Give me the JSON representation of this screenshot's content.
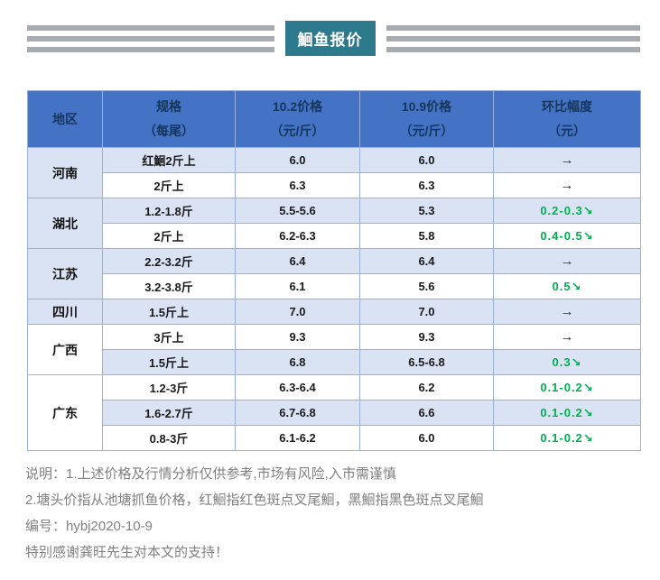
{
  "banner": {
    "title": "鮰鱼报价"
  },
  "colors": {
    "banner_bg": "#2C7A8B",
    "stripe": "#A6AAB1",
    "header_bg": "#4472C4",
    "header_text": "#16365C",
    "row_alt_bg": "#DAE3F3",
    "table_border": "#9AB0DE",
    "down_green": "#00B050",
    "flat_arrow": "#333333",
    "note_text": "#808080"
  },
  "table": {
    "columns": [
      {
        "line1": "地区",
        "line2": ""
      },
      {
        "line1": "规格",
        "line2": "（每尾）"
      },
      {
        "line1": "10.2价格",
        "line2": "（元/斤）"
      },
      {
        "line1": "10.9价格",
        "line2": "（元/斤）"
      },
      {
        "line1": "环比幅度",
        "line2": "（元）"
      }
    ],
    "groups": [
      {
        "region": "河南",
        "region_shade": "blue",
        "rows": [
          {
            "spec": "红鮰2斤上",
            "p102": "6.0",
            "p109": "6.0",
            "change": "→",
            "change_type": "flat",
            "shade": "blue"
          },
          {
            "spec": "2斤上",
            "p102": "6.3",
            "p109": "6.3",
            "change": "→",
            "change_type": "flat",
            "shade": "white"
          }
        ]
      },
      {
        "region": "湖北",
        "region_shade": "blue",
        "rows": [
          {
            "spec": "1.2-1.8斤",
            "p102": "5.5-5.6",
            "p109": "5.3",
            "change": "0.2-0.3↘",
            "change_type": "down",
            "shade": "blue"
          },
          {
            "spec": "2斤上",
            "p102": "6.2-6.3",
            "p109": "5.8",
            "change": "0.4-0.5↘",
            "change_type": "down",
            "shade": "white"
          }
        ]
      },
      {
        "region": "江苏",
        "region_shade": "blue",
        "rows": [
          {
            "spec": "2.2-3.2斤",
            "p102": "6.4",
            "p109": "6.4",
            "change": "→",
            "change_type": "flat",
            "shade": "blue"
          },
          {
            "spec": "3.2-3.8斤",
            "p102": "6.1",
            "p109": "5.6",
            "change": "0.5↘",
            "change_type": "down",
            "shade": "white"
          }
        ]
      },
      {
        "region": "四川",
        "region_shade": "blue",
        "rows": [
          {
            "spec": "1.5斤上",
            "p102": "7.0",
            "p109": "7.0",
            "change": "→",
            "change_type": "flat",
            "shade": "blue"
          }
        ]
      },
      {
        "region": "广西",
        "region_shade": "white",
        "rows": [
          {
            "spec": "3斤上",
            "p102": "9.3",
            "p109": "9.3",
            "change": "→",
            "change_type": "flat",
            "shade": "white"
          },
          {
            "spec": "1.5斤上",
            "p102": "6.8",
            "p109": "6.5-6.8",
            "change": "0.3↘",
            "change_type": "down",
            "shade": "blue"
          }
        ]
      },
      {
        "region": "广东",
        "region_shade": "white",
        "rows": [
          {
            "spec": "1.2-3斤",
            "p102": "6.3-6.4",
            "p109": "6.2",
            "change": "0.1-0.2↘",
            "change_type": "down",
            "shade": "white"
          },
          {
            "spec": "1.6-2.7斤",
            "p102": "6.7-6.8",
            "p109": "6.6",
            "change": "0.1-0.2↘",
            "change_type": "down",
            "shade": "blue"
          },
          {
            "spec": "0.8-3斤",
            "p102": "6.1-6.2",
            "p109": "6.0",
            "change": "0.1-0.2↘",
            "change_type": "down",
            "shade": "white"
          }
        ]
      }
    ]
  },
  "notes": [
    "说明：1.上述价格及行情分析仅供参考,市场有风险,入市需谨慎",
    "2.塘头价指从池塘抓鱼价格，红鮰指红色斑点叉尾鮰，黑鮰指黑色斑点叉尾鮰",
    "编号：hybj2020-10-9",
    "特别感谢龚旺先生对本文的支持！"
  ]
}
